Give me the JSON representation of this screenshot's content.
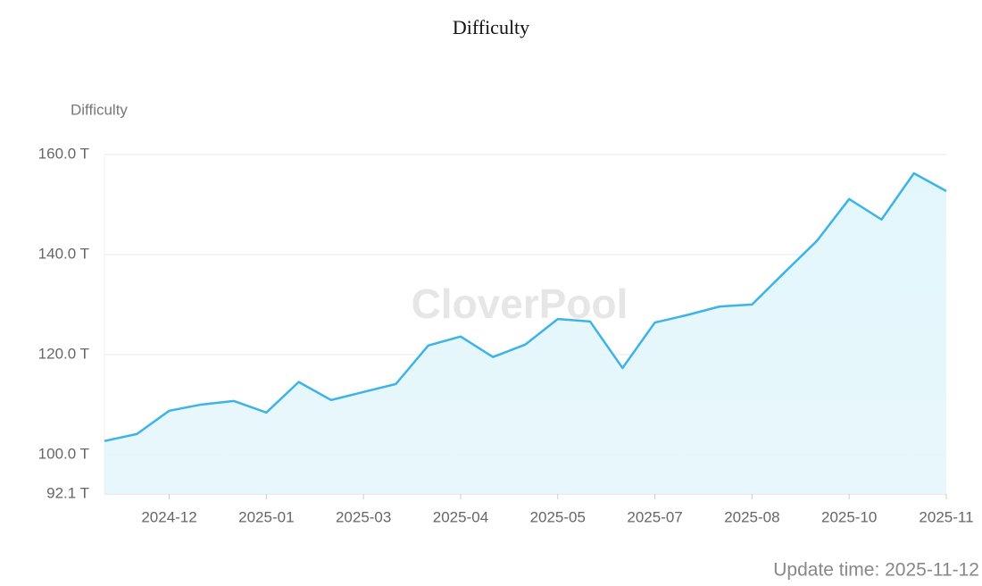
{
  "chart_data": {
    "type": "line",
    "title": "Difficulty",
    "y_label": "Difficulty",
    "watermark": "CloverPool",
    "footer": "Update time: 2025-11-12",
    "categories": [
      null,
      null,
      "2024-12",
      null,
      null,
      "2025-01",
      null,
      null,
      "2025-03",
      null,
      null,
      "2025-04",
      null,
      null,
      "2025-05",
      null,
      null,
      "2025-07",
      null,
      null,
      "2025-08",
      null,
      null,
      "2025-10",
      null,
      null,
      "2025-11"
    ],
    "series": [
      {
        "name": "Difficulty",
        "color": "#3db3e8",
        "values": [
          102.7,
          104.1,
          108.75,
          110.0,
          110.7,
          108.4,
          114.5,
          110.9,
          112.5,
          114.1,
          121.8,
          123.6,
          119.5,
          122.0,
          127.1,
          126.6,
          117.3,
          126.4,
          127.9,
          129.6,
          130.0,
          136.4,
          142.7,
          151.1,
          147.0,
          156.25,
          152.7
        ]
      }
    ],
    "ylim": [
      92.1,
      160
    ],
    "yticks": [
      {
        "value": 92.1,
        "label": "92.1 T"
      },
      {
        "value": 100,
        "label": "100.0 T"
      },
      {
        "value": 120,
        "label": "120.0 T"
      },
      {
        "value": 140,
        "label": "140.0 T"
      },
      {
        "value": 160,
        "label": "160.0 T"
      }
    ],
    "grid": true,
    "area": true
  }
}
